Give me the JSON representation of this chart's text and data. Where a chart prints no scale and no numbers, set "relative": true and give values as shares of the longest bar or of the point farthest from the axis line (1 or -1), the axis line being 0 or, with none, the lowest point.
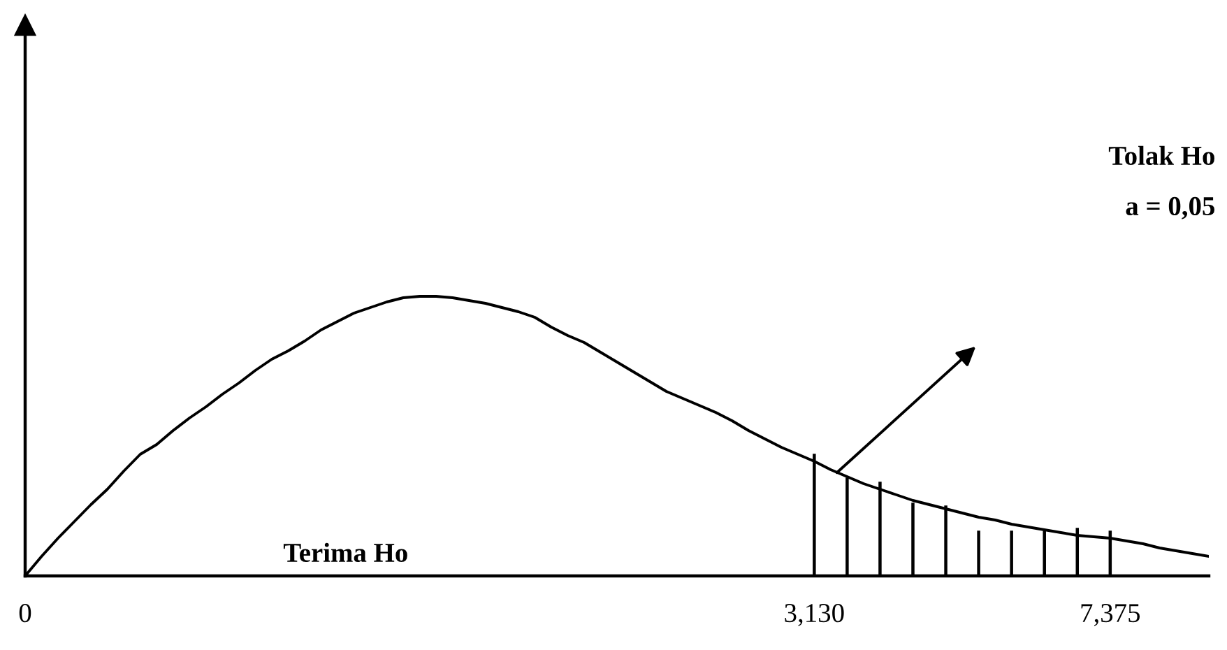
{
  "chart_data": {
    "type": "line",
    "relative": true,
    "categories": [
      "0",
      null,
      null,
      null,
      null,
      null,
      null,
      null,
      null,
      null,
      null,
      null,
      null,
      null,
      null,
      null,
      null,
      null,
      null,
      null,
      null,
      null,
      null,
      null,
      null,
      null,
      null,
      null,
      null,
      null,
      null,
      null,
      null,
      null,
      null,
      null,
      null,
      null,
      null,
      null,
      null,
      null,
      null,
      null,
      null,
      null,
      null,
      null,
      "3,130",
      null,
      null,
      null,
      null,
      null,
      null,
      null,
      null,
      null,
      null,
      null,
      null,
      null,
      null,
      null,
      null,
      null,
      "7,375",
      null,
      null,
      null,
      null,
      null,
      null
    ],
    "series": [
      {
        "color": "#000000",
        "values": [
          0,
          0.07,
          0.135,
          0.195,
          0.255,
          0.31,
          0.375,
          0.435,
          0.47,
          0.52,
          0.565,
          0.605,
          0.65,
          0.69,
          0.735,
          0.775,
          0.805,
          0.84,
          0.88,
          0.91,
          0.94,
          0.96,
          0.98,
          0.995,
          1,
          1,
          0.995,
          0.985,
          0.975,
          0.96,
          0.945,
          0.925,
          0.89,
          0.86,
          0.835,
          0.8,
          0.765,
          0.73,
          0.695,
          0.66,
          0.635,
          0.61,
          0.585,
          0.555,
          0.52,
          0.49,
          0.46,
          0.435,
          0.41,
          0.38,
          0.355,
          0.33,
          0.31,
          0.29,
          0.27,
          0.255,
          0.24,
          0.225,
          0.21,
          0.2,
          0.185,
          0.175,
          0.165,
          0.155,
          0.145,
          0.14,
          0.135,
          0.125,
          0.115,
          0.1,
          0.09,
          0.08,
          0.07
        ]
      },
      {
        "type": "bar",
        "color": "#000000",
        "values": [
          null,
          null,
          null,
          null,
          null,
          null,
          null,
          null,
          null,
          null,
          null,
          null,
          null,
          null,
          null,
          null,
          null,
          null,
          null,
          null,
          null,
          null,
          null,
          null,
          null,
          null,
          null,
          null,
          null,
          null,
          null,
          null,
          null,
          null,
          null,
          null,
          null,
          null,
          null,
          null,
          null,
          null,
          null,
          null,
          null,
          null,
          null,
          null,
          0.435,
          null,
          0.35,
          null,
          0.335,
          null,
          0.26,
          null,
          0.25,
          null,
          0.16,
          null,
          0.16,
          null,
          0.16,
          null,
          0.17,
          null,
          0.16,
          null,
          null,
          null,
          null,
          null,
          null
        ]
      }
    ],
    "annotations": [
      "Terima Ho",
      "Tolak Ho",
      "a = 0,05"
    ],
    "grid": false,
    "legend": false,
    "marker": "none",
    "line_style": "solid"
  }
}
